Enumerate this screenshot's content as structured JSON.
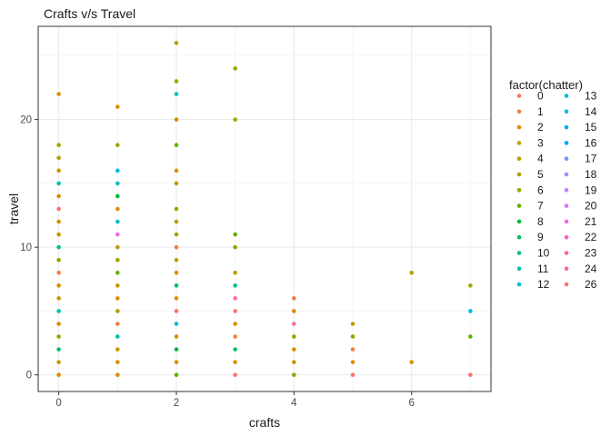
{
  "chart_data": {
    "type": "scatter",
    "title": "Crafts v/s Travel",
    "xlabel": "crafts",
    "ylabel": "travel",
    "xlim": [
      -0.35,
      7.35
    ],
    "ylim": [
      -1.3,
      27.3
    ],
    "xticks": [
      0,
      2,
      4,
      6
    ],
    "yticks": [
      0,
      10,
      20
    ],
    "grid": true,
    "legend": {
      "title": "factor(chatter)",
      "position": "right",
      "entries": [
        {
          "label": "0",
          "color": "#F8766D"
        },
        {
          "label": "1",
          "color": "#EE8043"
        },
        {
          "label": "2",
          "color": "#DC8D00"
        },
        {
          "label": "3",
          "color": "#C59900"
        },
        {
          "label": "4",
          "color": "#B4A000"
        },
        {
          "label": "5",
          "color": "#A3A500"
        },
        {
          "label": "6",
          "color": "#88AC00"
        },
        {
          "label": "7",
          "color": "#5EB300"
        },
        {
          "label": "8",
          "color": "#00BA38"
        },
        {
          "label": "9",
          "color": "#00BE67"
        },
        {
          "label": "10",
          "color": "#00C08B"
        },
        {
          "label": "11",
          "color": "#00C0AF"
        },
        {
          "label": "12",
          "color": "#00BFC4"
        },
        {
          "label": "13",
          "color": "#00BCD8"
        },
        {
          "label": "14",
          "color": "#00B8E7"
        },
        {
          "label": "15",
          "color": "#00B0F6"
        },
        {
          "label": "16",
          "color": "#00A5FF"
        },
        {
          "label": "17",
          "color": "#619CFF"
        },
        {
          "label": "18",
          "color": "#9590FF"
        },
        {
          "label": "19",
          "color": "#B983FF"
        },
        {
          "label": "20",
          "color": "#DB72FB"
        },
        {
          "label": "21",
          "color": "#F066EA"
        },
        {
          "label": "22",
          "color": "#FF61C3"
        },
        {
          "label": "23",
          "color": "#FF62A8"
        },
        {
          "label": "24",
          "color": "#FF6C91"
        },
        {
          "label": "26",
          "color": "#F8766D"
        }
      ]
    },
    "points": [
      {
        "x": 0,
        "y": 22,
        "c": "2"
      },
      {
        "x": 0,
        "y": 18,
        "c": "5"
      },
      {
        "x": 0,
        "y": 17,
        "c": "4"
      },
      {
        "x": 0,
        "y": 16,
        "c": "3"
      },
      {
        "x": 0,
        "y": 15,
        "c": "11"
      },
      {
        "x": 0,
        "y": 14,
        "c": "2"
      },
      {
        "x": 0,
        "y": 13,
        "c": "0"
      },
      {
        "x": 0,
        "y": 12,
        "c": "2"
      },
      {
        "x": 0,
        "y": 11,
        "c": "3"
      },
      {
        "x": 0,
        "y": 10,
        "c": "10"
      },
      {
        "x": 0,
        "y": 9,
        "c": "6"
      },
      {
        "x": 0,
        "y": 8,
        "c": "1"
      },
      {
        "x": 0,
        "y": 7,
        "c": "2"
      },
      {
        "x": 0,
        "y": 6,
        "c": "3"
      },
      {
        "x": 0,
        "y": 5,
        "c": "12"
      },
      {
        "x": 0,
        "y": 4,
        "c": "2"
      },
      {
        "x": 0,
        "y": 3,
        "c": "6"
      },
      {
        "x": 0,
        "y": 2,
        "c": "9"
      },
      {
        "x": 0,
        "y": 1,
        "c": "3"
      },
      {
        "x": 0,
        "y": 0,
        "c": "2"
      },
      {
        "x": 1,
        "y": 21,
        "c": "2"
      },
      {
        "x": 1,
        "y": 18,
        "c": "5"
      },
      {
        "x": 1,
        "y": 16,
        "c": "14"
      },
      {
        "x": 1,
        "y": 15,
        "c": "12"
      },
      {
        "x": 1,
        "y": 14,
        "c": "8"
      },
      {
        "x": 1,
        "y": 13,
        "c": "2"
      },
      {
        "x": 1,
        "y": 12,
        "c": "12"
      },
      {
        "x": 1,
        "y": 11,
        "c": "21"
      },
      {
        "x": 1,
        "y": 10,
        "c": "3"
      },
      {
        "x": 1,
        "y": 9,
        "c": "5"
      },
      {
        "x": 1,
        "y": 8,
        "c": "7"
      },
      {
        "x": 1,
        "y": 7,
        "c": "3"
      },
      {
        "x": 1,
        "y": 6,
        "c": "2"
      },
      {
        "x": 1,
        "y": 5,
        "c": "4"
      },
      {
        "x": 1,
        "y": 4,
        "c": "1"
      },
      {
        "x": 1,
        "y": 3,
        "c": "11"
      },
      {
        "x": 1,
        "y": 2,
        "c": "3"
      },
      {
        "x": 1,
        "y": 1,
        "c": "2"
      },
      {
        "x": 1,
        "y": 0,
        "c": "2"
      },
      {
        "x": 2,
        "y": 26,
        "c": "4"
      },
      {
        "x": 2,
        "y": 23,
        "c": "5"
      },
      {
        "x": 2,
        "y": 22,
        "c": "12"
      },
      {
        "x": 2,
        "y": 20,
        "c": "2"
      },
      {
        "x": 2,
        "y": 18,
        "c": "7"
      },
      {
        "x": 2,
        "y": 16,
        "c": "2"
      },
      {
        "x": 2,
        "y": 15,
        "c": "3"
      },
      {
        "x": 2,
        "y": 13,
        "c": "6"
      },
      {
        "x": 2,
        "y": 12,
        "c": "4"
      },
      {
        "x": 2,
        "y": 11,
        "c": "5"
      },
      {
        "x": 2,
        "y": 10,
        "c": "1"
      },
      {
        "x": 2,
        "y": 9,
        "c": "3"
      },
      {
        "x": 2,
        "y": 8,
        "c": "2"
      },
      {
        "x": 2,
        "y": 7,
        "c": "9"
      },
      {
        "x": 2,
        "y": 6,
        "c": "2"
      },
      {
        "x": 2,
        "y": 5,
        "c": "0"
      },
      {
        "x": 2,
        "y": 4,
        "c": "13"
      },
      {
        "x": 2,
        "y": 3,
        "c": "2"
      },
      {
        "x": 2,
        "y": 2,
        "c": "8"
      },
      {
        "x": 2,
        "y": 1,
        "c": "2"
      },
      {
        "x": 2,
        "y": 0,
        "c": "7"
      },
      {
        "x": 3,
        "y": 24,
        "c": "6"
      },
      {
        "x": 3,
        "y": 20,
        "c": "5"
      },
      {
        "x": 3,
        "y": 11,
        "c": "7"
      },
      {
        "x": 3,
        "y": 10,
        "c": "6"
      },
      {
        "x": 3,
        "y": 8,
        "c": "3"
      },
      {
        "x": 3,
        "y": 7,
        "c": "10"
      },
      {
        "x": 3,
        "y": 6,
        "c": "24"
      },
      {
        "x": 3,
        "y": 5,
        "c": "0"
      },
      {
        "x": 3,
        "y": 4,
        "c": "2"
      },
      {
        "x": 3,
        "y": 3,
        "c": "1"
      },
      {
        "x": 3,
        "y": 2,
        "c": "9"
      },
      {
        "x": 3,
        "y": 1,
        "c": "2"
      },
      {
        "x": 3,
        "y": 0,
        "c": "0"
      },
      {
        "x": 4,
        "y": 6,
        "c": "1"
      },
      {
        "x": 4,
        "y": 5,
        "c": "2"
      },
      {
        "x": 4,
        "y": 4,
        "c": "24"
      },
      {
        "x": 4,
        "y": 3,
        "c": "6"
      },
      {
        "x": 4,
        "y": 2,
        "c": "2"
      },
      {
        "x": 4,
        "y": 1,
        "c": "3"
      },
      {
        "x": 4,
        "y": 0,
        "c": "6"
      },
      {
        "x": 5,
        "y": 4,
        "c": "3"
      },
      {
        "x": 5,
        "y": 3,
        "c": "6"
      },
      {
        "x": 5,
        "y": 2,
        "c": "1"
      },
      {
        "x": 5,
        "y": 1,
        "c": "2"
      },
      {
        "x": 5,
        "y": 0,
        "c": "0"
      },
      {
        "x": 6,
        "y": 8,
        "c": "4"
      },
      {
        "x": 6,
        "y": 1,
        "c": "2"
      },
      {
        "x": 7,
        "y": 7,
        "c": "5"
      },
      {
        "x": 7,
        "y": 5,
        "c": "14"
      },
      {
        "x": 7,
        "y": 3,
        "c": "7"
      },
      {
        "x": 7,
        "y": 0,
        "c": "0"
      }
    ]
  }
}
